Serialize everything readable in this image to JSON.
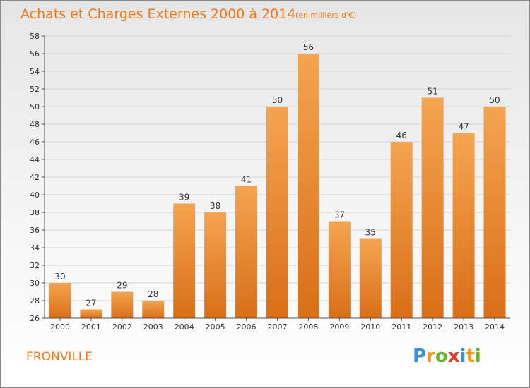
{
  "title": "Achats et Charges Externes 2000 à 2014",
  "subtitle": "(en milliers d'€)",
  "place_name": "FRONVILLE",
  "logo": {
    "letters": [
      "P",
      "r",
      "o",
      "x",
      "i",
      "t",
      "i"
    ],
    "colors": [
      "#3a8fd6",
      "#f39a1c",
      "#67b52e",
      "#e23a2c",
      "#3a8fd6",
      "#f39a1c",
      "#67b52e"
    ]
  },
  "bar_color": "#f09a3c",
  "chart_data": {
    "type": "bar",
    "title": "Achats et Charges Externes 2000 à 2014",
    "subtitle": "(en milliers d'€)",
    "categories": [
      "2000",
      "2001",
      "2002",
      "2003",
      "2004",
      "2005",
      "2006",
      "2007",
      "2008",
      "2009",
      "2010",
      "2011",
      "2012",
      "2013",
      "2014"
    ],
    "values": [
      30,
      27,
      29,
      28,
      39,
      38,
      41,
      50,
      56,
      37,
      35,
      46,
      51,
      47,
      50
    ],
    "ylim": [
      26,
      58
    ],
    "yticks": [
      26,
      28,
      30,
      32,
      34,
      36,
      38,
      40,
      42,
      44,
      46,
      48,
      50,
      52,
      54,
      56,
      58
    ],
    "grid": true,
    "data_labels": true
  }
}
